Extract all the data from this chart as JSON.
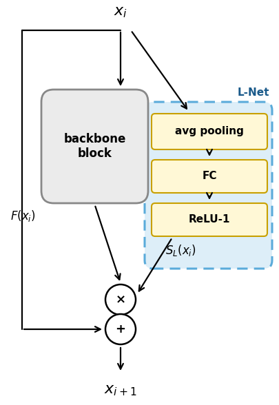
{
  "bg_color": "#ffffff",
  "backbone_label": "backbone\nblock",
  "lnet_label": "L-Net",
  "avg_label": "avg pooling",
  "fc_label": "FC",
  "relu_label": "ReLU-1",
  "xi_label": "$x_i$",
  "xo_label": "$x_{i+1}$",
  "fxi_label": "$F(x_i)$",
  "sl_label": "$S_L(x_i)$",
  "mult_label": "×",
  "add_label": "+",
  "backbone_fill": "#ebebeb",
  "backbone_edge": "#888888",
  "lnet_fill": "#ddeef8",
  "lnet_edge": "#5aabda",
  "inner_fill": "#fff8d6",
  "inner_edge": "#c8a000",
  "lnet_label_color": "#1a5a8a"
}
